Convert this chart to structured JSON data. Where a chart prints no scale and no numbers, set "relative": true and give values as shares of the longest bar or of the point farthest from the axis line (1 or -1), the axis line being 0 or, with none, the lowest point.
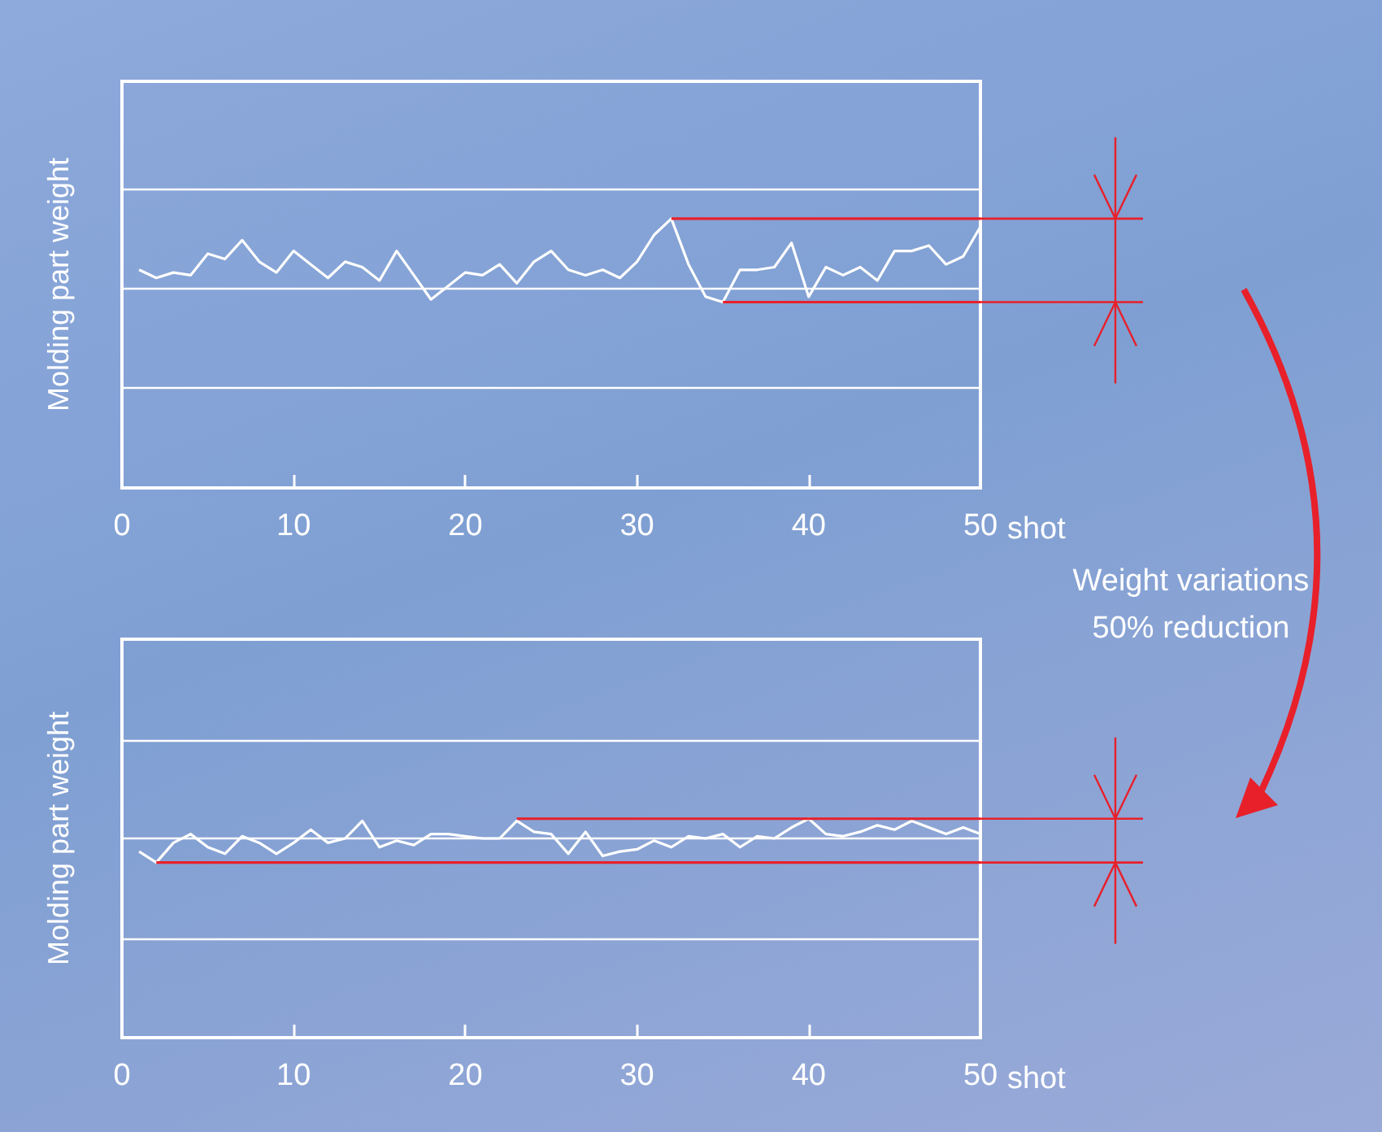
{
  "chart_data": [
    {
      "type": "line",
      "ylabel": "Molding part weight",
      "xlabel": "shot",
      "relative": true,
      "marker": "none",
      "xlim": [
        0,
        50
      ],
      "xticks": [
        0,
        10,
        20,
        30,
        40,
        50
      ],
      "x": [
        1,
        2,
        3,
        4,
        5,
        6,
        7,
        8,
        9,
        10,
        11,
        12,
        13,
        14,
        15,
        16,
        17,
        18,
        19,
        20,
        21,
        22,
        23,
        24,
        25,
        26,
        27,
        28,
        29,
        30,
        31,
        32,
        33,
        34,
        35,
        36,
        37,
        38,
        39,
        40,
        41,
        42,
        43,
        44,
        45,
        46,
        47,
        48,
        49,
        50
      ],
      "annotations": [
        "Weight variations 50% reduction"
      ],
      "ref_lines": [
        {
          "axis": "y",
          "value": 0.37,
          "color": "#ffffff"
        },
        {
          "axis": "y",
          "value": 0.74,
          "color": "#ffffff"
        },
        {
          "axis": "y",
          "value": 1.11,
          "color": "#ffffff"
        }
      ],
      "series": [
        {
          "color": "#ffffff",
          "values": [
            0.81,
            0.78,
            0.8,
            0.79,
            0.87,
            0.85,
            0.92,
            0.84,
            0.8,
            0.88,
            0.83,
            0.78,
            0.84,
            0.82,
            0.77,
            0.88,
            0.79,
            0.7,
            0.75,
            0.8,
            0.79,
            0.83,
            0.76,
            0.84,
            0.88,
            0.81,
            0.79,
            0.81,
            0.78,
            0.84,
            0.94,
            1,
            0.83,
            0.71,
            0.69,
            0.81,
            0.81,
            0.82,
            0.91,
            0.71,
            0.82,
            0.79,
            0.82,
            0.77,
            0.88,
            0.88,
            0.9,
            0.83,
            0.86,
            0.97
          ]
        },
        {
          "color": "#e8202a",
          "x": [
            32,
            50
          ],
          "values": [
            1,
            1
          ]
        },
        {
          "color": "#e8202a",
          "x": [
            35,
            50
          ],
          "values": [
            0.69,
            0.69
          ]
        }
      ]
    },
    {
      "type": "line",
      "ylabel": "Molding part weight",
      "xlabel": "shot",
      "relative": true,
      "marker": "none",
      "xlim": [
        0,
        50
      ],
      "xticks": [
        0,
        10,
        20,
        30,
        40,
        50
      ],
      "x": [
        1,
        2,
        3,
        4,
        5,
        6,
        7,
        8,
        9,
        10,
        11,
        12,
        13,
        14,
        15,
        16,
        17,
        18,
        19,
        20,
        21,
        22,
        23,
        24,
        25,
        26,
        27,
        28,
        29,
        30,
        31,
        32,
        33,
        34,
        35,
        36,
        37,
        38,
        39,
        40,
        41,
        42,
        43,
        44,
        45,
        46,
        47,
        48,
        49,
        50
      ],
      "ref_lines": [
        {
          "axis": "y",
          "value": 0.45,
          "color": "#ffffff"
        },
        {
          "axis": "y",
          "value": 0.91,
          "color": "#ffffff"
        },
        {
          "axis": "y",
          "value": 1.36,
          "color": "#ffffff"
        }
      ],
      "series": [
        {
          "color": "#ffffff",
          "values": [
            0.85,
            0.8,
            0.89,
            0.93,
            0.87,
            0.84,
            0.92,
            0.89,
            0.84,
            0.89,
            0.95,
            0.89,
            0.91,
            0.99,
            0.87,
            0.9,
            0.88,
            0.93,
            0.93,
            0.92,
            0.91,
            0.91,
            0.99,
            0.94,
            0.93,
            0.84,
            0.94,
            0.83,
            0.85,
            0.86,
            0.9,
            0.87,
            0.92,
            0.91,
            0.93,
            0.87,
            0.92,
            0.91,
            0.96,
            1,
            0.93,
            0.92,
            0.94,
            0.97,
            0.95,
            0.99,
            0.96,
            0.93,
            0.96,
            0.93
          ]
        },
        {
          "color": "#e8202a",
          "x": [
            23,
            50
          ],
          "values": [
            1,
            1
          ]
        },
        {
          "color": "#e8202a",
          "x": [
            2,
            50
          ],
          "values": [
            0.8,
            0.8
          ]
        }
      ]
    }
  ]
}
